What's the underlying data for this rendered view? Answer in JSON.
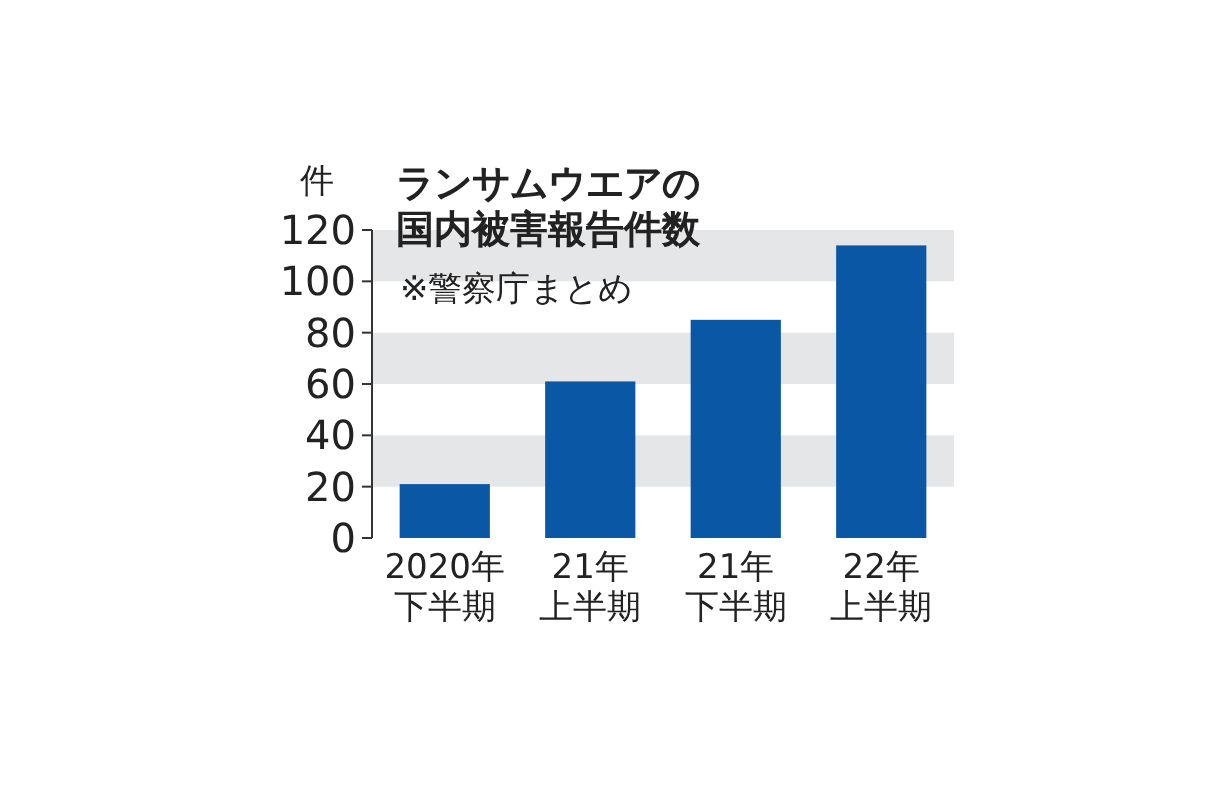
{
  "chart_data": {
    "type": "bar",
    "title": "ランサムウエアの国内被害報告件数",
    "subtitle": "※警察庁まとめ",
    "ylabel": "件",
    "categories": [
      "2020年下半期",
      "21年上半期",
      "21年下半期",
      "22年上半期"
    ],
    "values": [
      21,
      61,
      85,
      114
    ],
    "color": "#0a57a6",
    "ylim": [
      0,
      120
    ],
    "yticks": [
      0,
      20,
      40,
      60,
      80,
      100,
      120
    ],
    "bands": [
      {
        "axis": "y",
        "from": 20,
        "to": 40,
        "color": "#e5e6e8"
      },
      {
        "axis": "y",
        "from": 60,
        "to": 80,
        "color": "#e5e6e8"
      },
      {
        "axis": "y",
        "from": 100,
        "to": 120,
        "color": "#e5e6e8"
      }
    ]
  }
}
